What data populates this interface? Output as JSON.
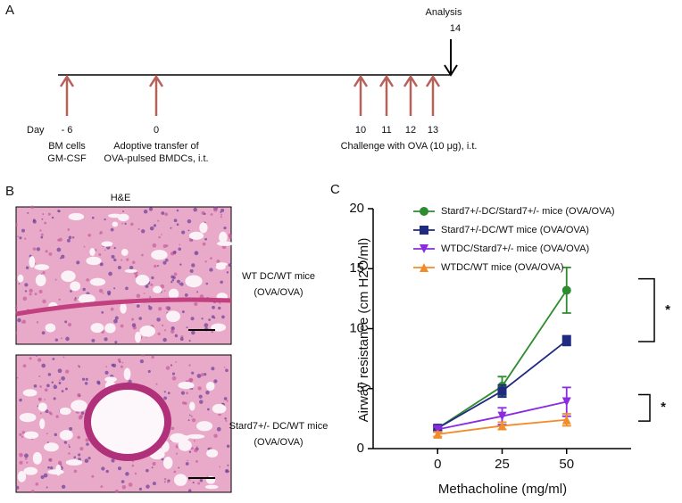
{
  "panel_a": {
    "label": "A",
    "day_label": "Day",
    "days": [
      "- 6",
      "0",
      "10",
      "11",
      "12",
      "13"
    ],
    "analysis": "Analysis",
    "analysis_day": "14",
    "events": [
      [
        "BM cells",
        "GM-CSF"
      ],
      [
        "Adoptive transfer of",
        "OVA-pulsed BMDCs, i.t."
      ],
      [
        "Challenge with OVA (10 μg), i.t."
      ]
    ]
  },
  "panel_b": {
    "label": "B",
    "stain": "H&E",
    "images": [
      [
        "WT DC/WT mice",
        "(OVA/OVA)"
      ],
      [
        "Stard7+/- DC/WT mice",
        "(OVA/OVA)"
      ]
    ]
  },
  "chart_data": {
    "type": "line",
    "panel": "C",
    "x_label": "Methacholine (mg/ml)",
    "y_label": "Airway resistance (cm H2O/ml)",
    "x": [
      0,
      25,
      50
    ],
    "xlim": [
      -25,
      75
    ],
    "xticks": [
      0,
      25,
      50
    ],
    "ylim": [
      0,
      20
    ],
    "yticks": [
      0,
      5,
      10,
      15,
      20
    ],
    "series": [
      {
        "name": "Stard7+/-DC/Stard7+/- mice (OVA/OVA)",
        "color": "#2e8b2e",
        "marker": "circle",
        "values": [
          1.7,
          5.2,
          13.2
        ],
        "errors": [
          0.2,
          0.8,
          1.9
        ]
      },
      {
        "name": "Stard7+/-DC/WT mice (OVA/OVA)",
        "color": "#1f2a80",
        "marker": "square",
        "values": [
          1.7,
          4.8,
          9.0
        ],
        "errors": [
          0.2,
          0.5,
          0.4
        ]
      },
      {
        "name": "WTDC/Stard7+/-  mice (OVA/OVA)",
        "color": "#8a2be2",
        "marker": "triangle-down",
        "values": [
          1.6,
          2.7,
          3.9
        ],
        "errors": [
          0.2,
          0.7,
          1.2
        ]
      },
      {
        "name": "WTDC/WT mice (OVA/OVA)",
        "color": "#f28c28",
        "marker": "triangle-up",
        "values": [
          1.2,
          1.9,
          2.4
        ],
        "errors": [
          0.2,
          0.3,
          0.5
        ]
      }
    ],
    "annotations": [
      "*",
      "*"
    ]
  }
}
